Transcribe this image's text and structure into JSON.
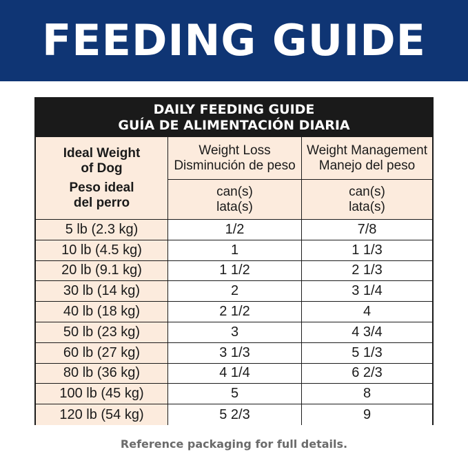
{
  "banner": {
    "title": "FEEDING GUIDE",
    "bg_color": "#0f3574"
  },
  "table": {
    "title_en": "DAILY FEEDING GUIDE",
    "title_es": "GUÍA DE ALIMENTACIÓN DIARIA",
    "header_bg": "#1a1a1a",
    "accent_bg": "#fcebdd",
    "weight_header": {
      "en_line1": "Ideal Weight",
      "en_line2": "of Dog",
      "es_line1": "Peso ideal",
      "es_line2": "del perro"
    },
    "loss_header": {
      "en": "Weight Loss",
      "es": "Disminución de peso"
    },
    "mgmt_header": {
      "en": "Weight Management",
      "es": "Manejo del peso"
    },
    "unit": {
      "en": "can(s)",
      "es": "lata(s)"
    },
    "rows": [
      {
        "weight": "5 lb (2.3 kg)",
        "loss": "1/2",
        "management": "7/8"
      },
      {
        "weight": "10 lb (4.5 kg)",
        "loss": "1",
        "management": "1 1/3"
      },
      {
        "weight": "20 lb (9.1 kg)",
        "loss": "1 1/2",
        "management": "2 1/3"
      },
      {
        "weight": "30 lb (14 kg)",
        "loss": "2",
        "management": "3 1/4"
      },
      {
        "weight": "40 lb (18 kg)",
        "loss": "2 1/2",
        "management": "4"
      },
      {
        "weight": "50 lb (23 kg)",
        "loss": "3",
        "management": "4 3/4"
      },
      {
        "weight": "60 lb (27 kg)",
        "loss": "3 1/3",
        "management": "5 1/3"
      },
      {
        "weight": "80 lb (36 kg)",
        "loss": "4 1/4",
        "management": "6 2/3"
      },
      {
        "weight": "100 lb (45 kg)",
        "loss": "5",
        "management": "8"
      },
      {
        "weight": "120 lb (54 kg)",
        "loss": "5 2/3",
        "management": "9"
      }
    ]
  },
  "footer": {
    "note": "Reference packaging for full details."
  }
}
